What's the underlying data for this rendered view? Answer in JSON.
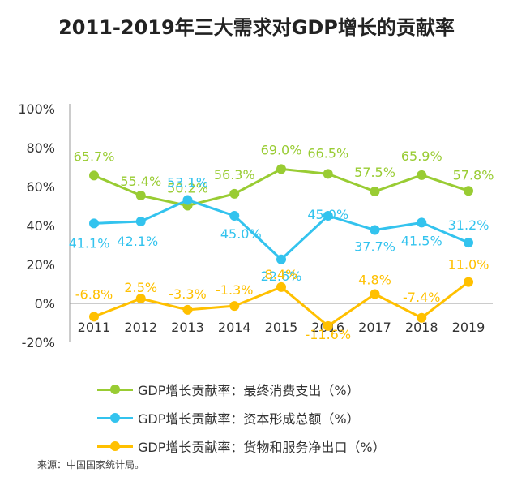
{
  "title": "2011-2019年三大需求对GDP增长的贡献率",
  "source": "来源：中国国家统计局。",
  "chart_data": {
    "type": "line",
    "categories": [
      "2011",
      "2012",
      "2013",
      "2014",
      "2015",
      "2016",
      "2017",
      "2018",
      "2019"
    ],
    "y_ticks": [
      "100%",
      "80%",
      "60%",
      "40%",
      "20%",
      "0%",
      "-20%"
    ],
    "ylim": [
      -20,
      100
    ],
    "grid": false,
    "legend_position": "bottom",
    "series": [
      {
        "name": "GDP增长贡献率：最终消费支出（%）",
        "color": "#99cc33",
        "values": [
          65.7,
          55.4,
          50.2,
          56.3,
          69.0,
          66.5,
          57.5,
          65.9,
          57.8
        ],
        "labels": [
          "65.7%",
          "55.4%",
          "50.2%",
          "56.3%",
          "69.0%",
          "66.5%",
          "57.5%",
          "65.9%",
          "57.8%"
        ]
      },
      {
        "name": "GDP增长贡献率：资本形成总额（%）",
        "color": "#33c3ee",
        "values": [
          41.1,
          42.1,
          53.1,
          45.0,
          22.6,
          45.0,
          37.7,
          41.5,
          31.2
        ],
        "labels": [
          "41.1%",
          "42.1%",
          "53.1%",
          "45.0%",
          "22.6%",
          "45.0%",
          "37.7%",
          "41.5%",
          "31.2%"
        ]
      },
      {
        "name": "GDP增长贡献率：货物和服务净出口（%）",
        "color": "#ffc000",
        "values": [
          -6.8,
          2.5,
          -3.3,
          -1.3,
          8.4,
          -11.6,
          4.8,
          -7.4,
          11.0
        ],
        "labels": [
          "-6.8%",
          "2.5%",
          "-3.3%",
          "-1.3%",
          "8.4%",
          "-11.6%",
          "4.8%",
          "-7.4%",
          "11.0%"
        ]
      }
    ]
  }
}
